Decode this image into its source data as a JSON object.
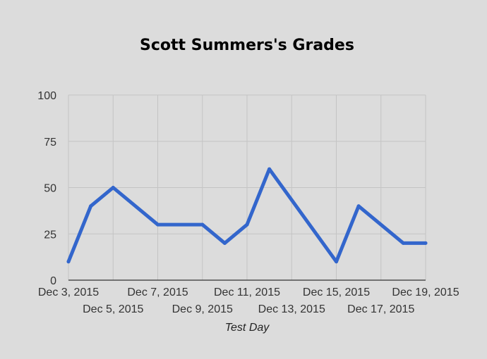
{
  "chart_data": {
    "type": "line",
    "title": "Scott Summers's Grades",
    "xlabel": "Test Day",
    "ylabel": "",
    "ylim": [
      0,
      100
    ],
    "yticks": [
      0,
      25,
      50,
      75,
      100
    ],
    "xlim": [
      "2015-12-03",
      "2015-12-19"
    ],
    "x_ticks": [
      {
        "date": "2015-12-03",
        "label": "Dec 3, 2015",
        "row": 1
      },
      {
        "date": "2015-12-05",
        "label": "Dec 5, 2015",
        "row": 2
      },
      {
        "date": "2015-12-07",
        "label": "Dec 7, 2015",
        "row": 1
      },
      {
        "date": "2015-12-09",
        "label": "Dec 9, 2015",
        "row": 2
      },
      {
        "date": "2015-12-11",
        "label": "Dec 11, 2015",
        "row": 1
      },
      {
        "date": "2015-12-13",
        "label": "Dec 13, 2015",
        "row": 2
      },
      {
        "date": "2015-12-15",
        "label": "Dec 15, 2015",
        "row": 1
      },
      {
        "date": "2015-12-17",
        "label": "Dec 17, 2015",
        "row": 2
      },
      {
        "date": "2015-12-19",
        "label": "Dec 19, 2015",
        "row": 1
      }
    ],
    "grid": true,
    "series": [
      {
        "color": "#3366cc",
        "points": [
          {
            "x": "2015-12-03",
            "y": 10
          },
          {
            "x": "2015-12-04",
            "y": 40
          },
          {
            "x": "2015-12-05",
            "y": 50
          },
          {
            "x": "2015-12-07",
            "y": 30
          },
          {
            "x": "2015-12-09",
            "y": 30
          },
          {
            "x": "2015-12-10",
            "y": 20
          },
          {
            "x": "2015-12-11",
            "y": 30
          },
          {
            "x": "2015-12-12",
            "y": 60
          },
          {
            "x": "2015-12-15",
            "y": 10
          },
          {
            "x": "2015-12-16",
            "y": 40
          },
          {
            "x": "2015-12-18",
            "y": 20
          },
          {
            "x": "2015-12-19",
            "y": 20
          }
        ]
      }
    ]
  }
}
